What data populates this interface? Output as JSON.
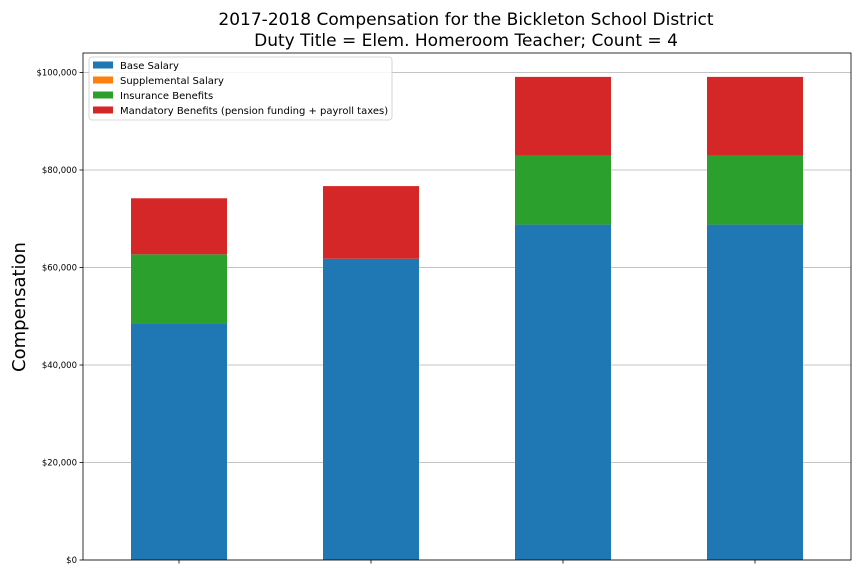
{
  "chart_data": {
    "type": "bar",
    "stacked": true,
    "title": "2017-2018 Compensation for the Bickleton School District",
    "subtitle": "Duty Title = Elem. Homeroom Teacher; Count = 4",
    "xlabel": "",
    "ylabel": "Compensation",
    "ylim": [
      0,
      104000
    ],
    "yticks": [
      0,
      20000,
      40000,
      60000,
      80000,
      100000
    ],
    "ytick_labels": [
      "$0",
      "$20,000",
      "$40,000",
      "$60,000",
      "$80,000",
      "$100,000"
    ],
    "categories": [
      "",
      "",
      "",
      ""
    ],
    "grid": "y",
    "legend_position": "top-left",
    "series": [
      {
        "name": "Base Salary",
        "color": "#1f77b4",
        "values": [
          48500,
          61800,
          68800,
          68800
        ]
      },
      {
        "name": "Supplemental Salary",
        "color": "#ff7f0e",
        "values": [
          0,
          0,
          0,
          0
        ]
      },
      {
        "name": "Insurance Benefits",
        "color": "#2ca02c",
        "values": [
          14200,
          0,
          14100,
          14100
        ]
      },
      {
        "name": "Mandatory Benefits (pension funding + payroll taxes)",
        "color": "#d62728",
        "values": [
          11500,
          14900,
          16200,
          16200
        ]
      }
    ]
  }
}
